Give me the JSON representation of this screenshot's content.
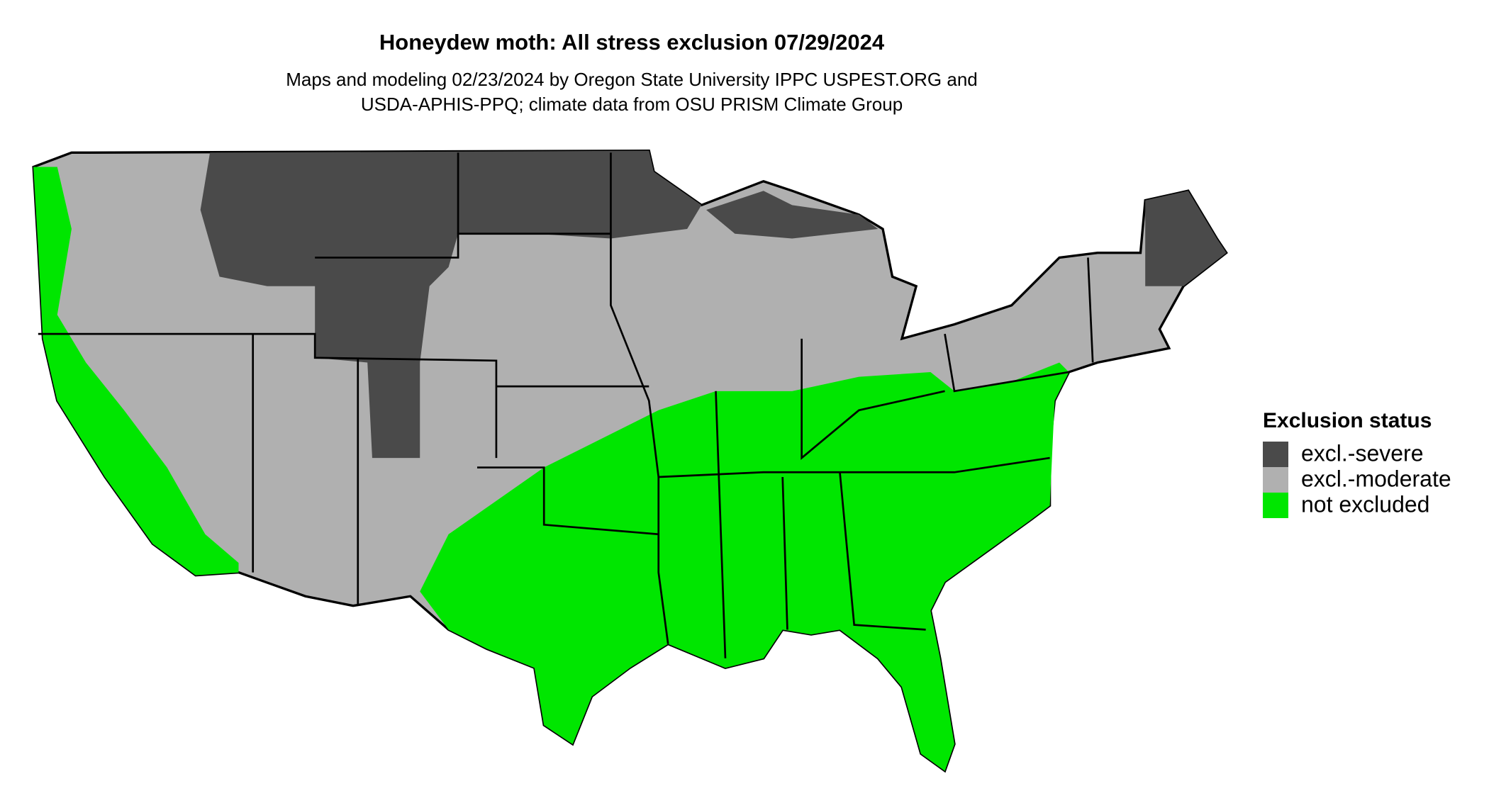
{
  "title": "Honeydew moth: All stress exclusion 07/29/2024",
  "subtitle": [
    "Maps and modeling 02/23/2024 by Oregon State University IPPC USPEST.ORG and",
    "USDA-APHIS-PPQ; climate data from OSU PRISM Climate Group"
  ],
  "legend": {
    "title": "Exclusion status",
    "items": [
      {
        "label": "excl.-severe",
        "color": "#4a4a4a"
      },
      {
        "label": "excl.-moderate",
        "color": "#b0b0b0"
      },
      {
        "label": "not excluded",
        "color": "#00e600"
      }
    ]
  }
}
